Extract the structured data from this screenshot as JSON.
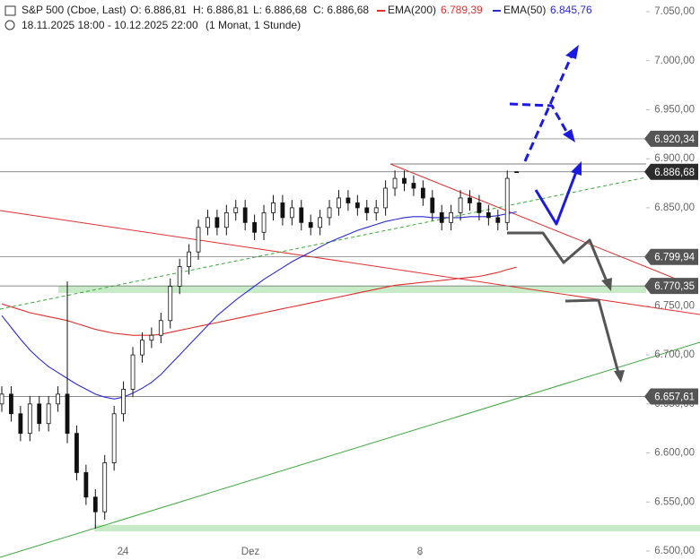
{
  "chart_data": {
    "type": "candlestick",
    "title": "S&P 500 (Cboe, Last)",
    "ohlc_header": [
      "O: 6.886,81",
      "H: 6.886,81",
      "L: 6.886,68",
      "C: 6.886,68"
    ],
    "subtitle": "18.11.2025 18:00 - 10.12.2025 22:00",
    "period": "(1 Monat, 1 Stunde)",
    "open": [
      6650,
      6660,
      6640,
      6620,
      6650,
      6630,
      6650,
      6660,
      6620,
      6580,
      6555,
      6540,
      6590,
      6640,
      6665,
      6700,
      6715,
      6720,
      6735,
      6770,
      6790,
      6805,
      6830,
      6840,
      6830,
      6845,
      6850,
      6835,
      6825,
      6845,
      6855,
      6840,
      6850,
      6835,
      6830,
      6840,
      6850,
      6860,
      6855,
      6850,
      6845,
      6850,
      6870,
      6880,
      6875,
      6870,
      6860,
      6845,
      6835,
      6845,
      6860,
      6855,
      6845,
      6840,
      6835,
      6886.81
    ],
    "high": [
      6668,
      6668,
      6648,
      6658,
      6658,
      6658,
      6668,
      6775,
      6628,
      6588,
      6563,
      6598,
      6648,
      6673,
      6708,
      6723,
      6728,
      6743,
      6778,
      6798,
      6813,
      6838,
      6848,
      6848,
      6853,
      6858,
      6858,
      6843,
      6853,
      6863,
      6863,
      6858,
      6858,
      6843,
      6848,
      6858,
      6868,
      6868,
      6863,
      6858,
      6858,
      6878,
      6888,
      6888,
      6883,
      6878,
      6868,
      6853,
      6853,
      6868,
      6868,
      6863,
      6853,
      6848,
      6888,
      6886.81
    ],
    "low": [
      6642,
      6632,
      6612,
      6612,
      6622,
      6622,
      6642,
      6610,
      6572,
      6547,
      6523,
      6532,
      6582,
      6632,
      6657,
      6692,
      6707,
      6712,
      6727,
      6762,
      6782,
      6797,
      6822,
      6822,
      6822,
      6837,
      6827,
      6817,
      6817,
      6837,
      6832,
      6832,
      6827,
      6822,
      6822,
      6832,
      6842,
      6847,
      6842,
      6837,
      6837,
      6842,
      6862,
      6867,
      6862,
      6852,
      6837,
      6827,
      6827,
      6837,
      6847,
      6837,
      6832,
      6827,
      6827,
      6886.68
    ],
    "close": [
      6660,
      6640,
      6620,
      6650,
      6630,
      6650,
      6660,
      6620,
      6580,
      6555,
      6540,
      6590,
      6640,
      6665,
      6700,
      6715,
      6720,
      6735,
      6770,
      6790,
      6805,
      6830,
      6840,
      6830,
      6845,
      6850,
      6835,
      6825,
      6845,
      6855,
      6840,
      6850,
      6835,
      6830,
      6840,
      6850,
      6860,
      6855,
      6850,
      6845,
      6850,
      6870,
      6880,
      6875,
      6870,
      6860,
      6845,
      6835,
      6845,
      6860,
      6855,
      6845,
      6840,
      6835,
      6880,
      6886.68
    ],
    "series": [
      {
        "name": "EMA(200)",
        "label": "6.789,39",
        "color": "#e03030",
        "values": [
          6752,
          6749,
          6746,
          6743,
          6741,
          6739,
          6737,
          6735,
          6732,
          6729,
          6726,
          6724,
          6722,
          6721,
          6720,
          6720,
          6720,
          6721,
          6723,
          6725,
          6727,
          6729,
          6731,
          6733,
          6735,
          6737,
          6739,
          6741,
          6743,
          6745,
          6747,
          6749,
          6751,
          6753,
          6755,
          6757,
          6759,
          6761,
          6763,
          6765,
          6767,
          6769,
          6771,
          6772,
          6773,
          6774,
          6775,
          6776,
          6777,
          6778,
          6779,
          6780,
          6782,
          6784,
          6787,
          6789.39
        ]
      },
      {
        "name": "EMA(50)",
        "label": "6.845,76",
        "color": "#2a2ad8",
        "values": [
          6740,
          6728,
          6716,
          6705,
          6696,
          6688,
          6682,
          6676,
          6670,
          6665,
          6660,
          6657,
          6655,
          6657,
          6661,
          6666,
          6672,
          6680,
          6690,
          6700,
          6710,
          6720,
          6730,
          6740,
          6748,
          6756,
          6763,
          6770,
          6777,
          6783,
          6789,
          6795,
          6800,
          6805,
          6810,
          6815,
          6819,
          6823,
          6827,
          6830,
          6833,
          6836,
          6838,
          6840,
          6841,
          6841,
          6840,
          6840,
          6840,
          6840,
          6841,
          6841,
          6841,
          6842,
          6844,
          6845.76
        ]
      }
    ],
    "levels": [
      {
        "value": 6920.34,
        "label": "6.920,34"
      },
      {
        "value": 6886.68,
        "label": "6.886,68"
      },
      {
        "value": 6799.94,
        "label": "6.799,94"
      },
      {
        "value": 6770.35,
        "label": "6.770,35"
      },
      {
        "value": 6657.61,
        "label": "6.657,61"
      }
    ],
    "xticks": [
      "24",
      "Dez",
      "8"
    ],
    "ylim": [
      6500,
      7050
    ],
    "yticks": [
      {
        "value": 6500,
        "label": "6.500,00"
      },
      {
        "value": 6550,
        "label": "6.550,00"
      },
      {
        "value": 6600,
        "label": "6.600,00"
      },
      {
        "value": 6650,
        "label": "6.650,00"
      },
      {
        "value": 6700,
        "label": "6.700,00"
      },
      {
        "value": 6750,
        "label": "6.750,00"
      },
      {
        "value": 6800,
        "label": "6.800,00"
      },
      {
        "value": 6850,
        "label": "6.850,00"
      },
      {
        "value": 6900,
        "label": "6.900,00"
      },
      {
        "value": 6950,
        "label": "6.950,00"
      },
      {
        "value": 7000,
        "label": "7.000,00"
      },
      {
        "value": 7050,
        "label": "7.050,00"
      }
    ]
  }
}
